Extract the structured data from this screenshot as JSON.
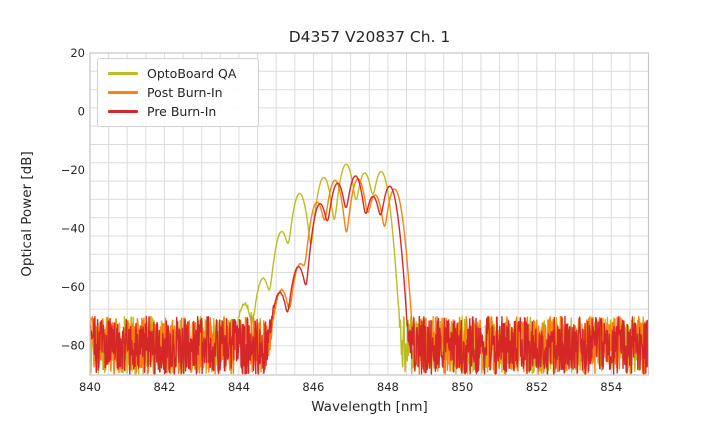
{
  "chart_data": {
    "type": "line",
    "title": "D4357 V20837 Ch. 1",
    "xlabel": "Wavelength [nm]",
    "ylabel": "Optical Power [dB]",
    "xlim": [
      840,
      855
    ],
    "ylim": [
      -90,
      20
    ],
    "x_ticks": [
      840,
      842,
      844,
      846,
      848,
      850,
      852,
      854
    ],
    "y_ticks": [
      20,
      0,
      -20,
      -40,
      -60,
      -80
    ],
    "x_grid_step_nm": 0.5,
    "y_grid_step_db": 6.25,
    "grid": true,
    "legend_position": "upper-left",
    "mode_sigma_nm": 0.1,
    "noise": {
      "top_dB": -70,
      "span_dB": 19.8
    },
    "series": [
      {
        "name": "OptoBoard QA",
        "color": "#bcbd22",
        "seed": 7,
        "modes_nm_dB": [
          [
            844.15,
            -66
          ],
          [
            844.65,
            -57
          ],
          [
            845.15,
            -41
          ],
          [
            845.63,
            -28
          ],
          [
            846.28,
            -22.5
          ],
          [
            846.88,
            -18
          ],
          [
            847.38,
            -21
          ],
          [
            847.82,
            -20.5
          ]
        ]
      },
      {
        "name": "Post Burn-In",
        "color": "#ff7f0e",
        "seed": 13,
        "modes_nm_dB": [
          [
            845.15,
            -61
          ],
          [
            845.65,
            -52
          ],
          [
            846.1,
            -31
          ],
          [
            846.58,
            -23.5
          ],
          [
            847.2,
            -23
          ],
          [
            847.66,
            -28.5
          ],
          [
            848.18,
            -26.5
          ]
        ]
      },
      {
        "name": "Pre Burn-In",
        "color": "#d62728",
        "seed": 29,
        "modes_nm_dB": [
          [
            845.1,
            -62
          ],
          [
            845.6,
            -53
          ],
          [
            846.18,
            -31.5
          ],
          [
            846.65,
            -24.5
          ],
          [
            847.13,
            -22
          ],
          [
            847.6,
            -29
          ],
          [
            848.05,
            -25.5
          ]
        ]
      }
    ],
    "colors": {
      "grid": "#dcdcdc",
      "spine": "#c6c6c6",
      "text": "#262626",
      "background": "#ffffff"
    }
  }
}
